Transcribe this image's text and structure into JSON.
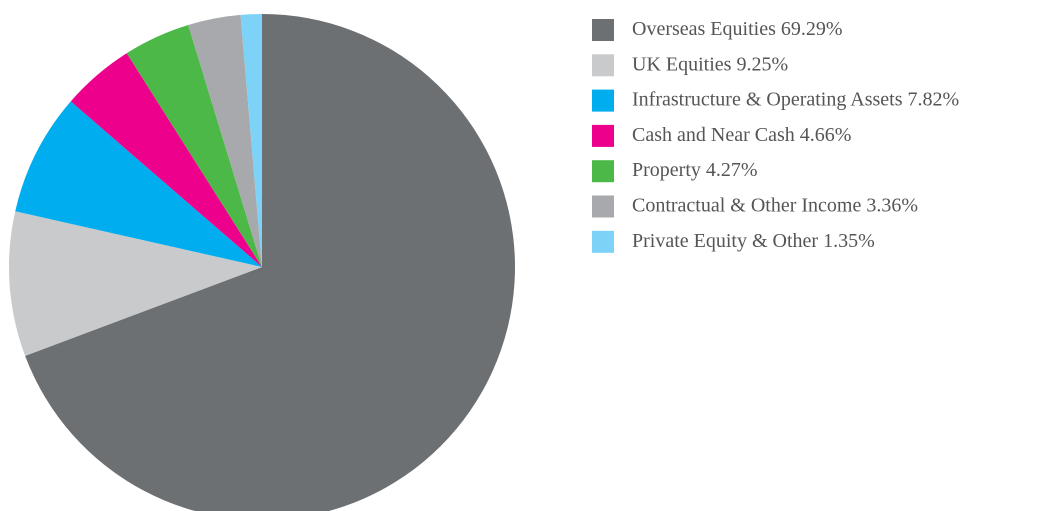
{
  "chart_data": {
    "type": "pie",
    "categories": [
      "Overseas Equities",
      "UK Equities",
      "Infrastructure & Operating Assets",
      "Cash and Near Cash",
      "Property",
      "Contractual & Other Income",
      "Private Equity & Other"
    ],
    "values": [
      69.29,
      9.25,
      7.82,
      4.66,
      4.27,
      3.36,
      1.35
    ],
    "value_labels": [
      "69.29%",
      "9.25%",
      "7.82%",
      "4.66%",
      "4.27%",
      "3.36%",
      "1.35%"
    ],
    "colors": [
      "#6d7073",
      "#c8cacc",
      "#00aeef",
      "#ec008c",
      "#4cb848",
      "#a7a9ac",
      "#7dd3f7"
    ],
    "legend": "right"
  }
}
